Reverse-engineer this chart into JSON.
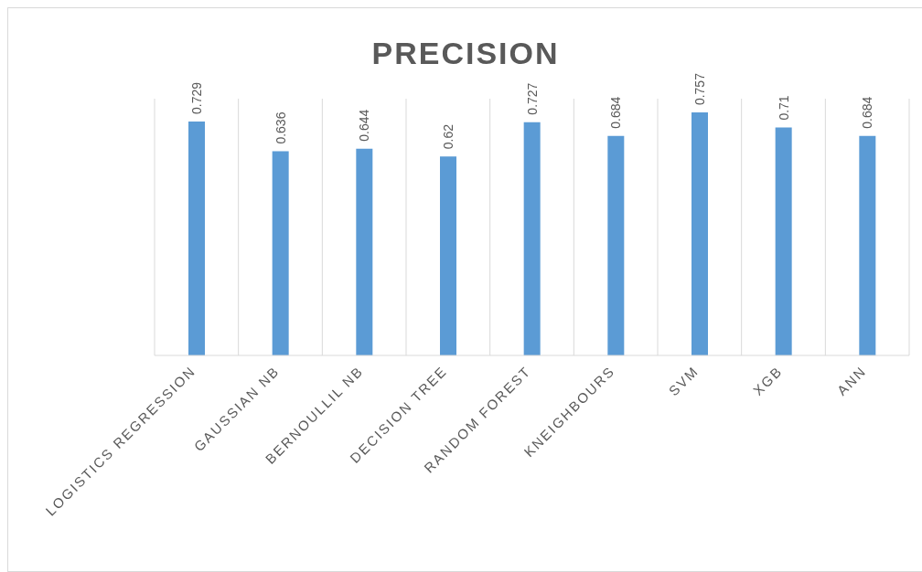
{
  "chart_data": {
    "type": "bar",
    "title": "PRECISION",
    "categories": [
      "LOGISTICS REGRESSION",
      "GAUSSIAN NB",
      "BERNOULLIL NB",
      "DECISION TREE",
      "RANDOM FOREST",
      "KNEIGHBOURS",
      "SVM",
      "XGB",
      "ANN"
    ],
    "values": [
      0.729,
      0.636,
      0.644,
      0.62,
      0.727,
      0.684,
      0.757,
      0.71,
      0.684
    ],
    "color": "#5b9bd5",
    "ylim": [
      0,
      0.8
    ],
    "tick_labels": "x",
    "grid": "x",
    "data_labels": true
  }
}
